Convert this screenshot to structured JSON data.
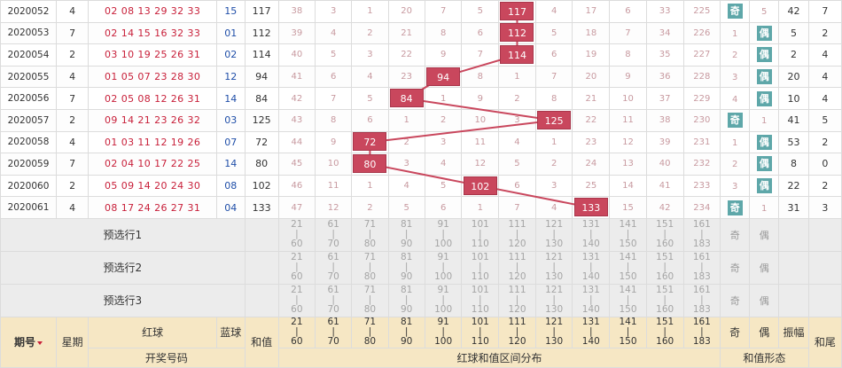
{
  "rows": [
    {
      "period": "2020052",
      "week": "4",
      "reds": "02 08 13 29 32 33",
      "blue": "15",
      "sum": "117",
      "bucket": 6,
      "miss": [
        "38",
        "3",
        "1",
        "20",
        "7",
        "5",
        "",
        "4",
        "17",
        "6",
        "33",
        "225"
      ],
      "oe": "奇",
      "oe_col": 0,
      "oe_miss": "5",
      "amp": "42",
      "tail": "7"
    },
    {
      "period": "2020053",
      "week": "7",
      "reds": "02 14 15 16 32 33",
      "blue": "01",
      "sum": "112",
      "bucket": 6,
      "miss": [
        "39",
        "4",
        "2",
        "21",
        "8",
        "6",
        "",
        "5",
        "18",
        "7",
        "34",
        "226"
      ],
      "oe": "偶",
      "oe_col": 1,
      "oe_miss": "1",
      "amp": "5",
      "tail": "2"
    },
    {
      "period": "2020054",
      "week": "2",
      "reds": "03 10 19 25 26 31",
      "blue": "02",
      "sum": "114",
      "bucket": 6,
      "miss": [
        "40",
        "5",
        "3",
        "22",
        "9",
        "7",
        "",
        "6",
        "19",
        "8",
        "35",
        "227"
      ],
      "oe": "偶",
      "oe_col": 1,
      "oe_miss": "2",
      "amp": "2",
      "tail": "4"
    },
    {
      "period": "2020055",
      "week": "4",
      "reds": "01 05 07 23 28 30",
      "blue": "12",
      "sum": "94",
      "bucket": 4,
      "miss": [
        "41",
        "6",
        "4",
        "23",
        "",
        "8",
        "1",
        "7",
        "20",
        "9",
        "36",
        "228"
      ],
      "oe": "偶",
      "oe_col": 1,
      "oe_miss": "3",
      "amp": "20",
      "tail": "4"
    },
    {
      "period": "2020056",
      "week": "7",
      "reds": "02 05 08 12 26 31",
      "blue": "14",
      "sum": "84",
      "bucket": 3,
      "miss": [
        "42",
        "7",
        "5",
        "",
        "1",
        "9",
        "2",
        "8",
        "21",
        "10",
        "37",
        "229"
      ],
      "oe": "偶",
      "oe_col": 1,
      "oe_miss": "4",
      "amp": "10",
      "tail": "4"
    },
    {
      "period": "2020057",
      "week": "2",
      "reds": "09 14 21 23 26 32",
      "blue": "03",
      "sum": "125",
      "bucket": 7,
      "miss": [
        "43",
        "8",
        "6",
        "1",
        "2",
        "10",
        "3",
        "",
        "22",
        "11",
        "38",
        "230"
      ],
      "oe": "奇",
      "oe_col": 0,
      "oe_miss": "1",
      "amp": "41",
      "tail": "5"
    },
    {
      "period": "2020058",
      "week": "4",
      "reds": "01 03 11 12 19 26",
      "blue": "07",
      "sum": "72",
      "bucket": 2,
      "miss": [
        "44",
        "9",
        "",
        "2",
        "3",
        "11",
        "4",
        "1",
        "23",
        "12",
        "39",
        "231"
      ],
      "oe": "偶",
      "oe_col": 1,
      "oe_miss": "1",
      "amp": "53",
      "tail": "2"
    },
    {
      "period": "2020059",
      "week": "7",
      "reds": "02 04 10 17 22 25",
      "blue": "14",
      "sum": "80",
      "bucket": 2,
      "miss": [
        "45",
        "10",
        "",
        "3",
        "4",
        "12",
        "5",
        "2",
        "24",
        "13",
        "40",
        "232"
      ],
      "oe": "偶",
      "oe_col": 1,
      "oe_miss": "2",
      "amp": "8",
      "tail": "0"
    },
    {
      "period": "2020060",
      "week": "2",
      "reds": "05 09 14 20 24 30",
      "blue": "08",
      "sum": "102",
      "bucket": 5,
      "miss": [
        "46",
        "11",
        "1",
        "4",
        "5",
        "",
        "6",
        "3",
        "25",
        "14",
        "41",
        "233"
      ],
      "oe": "偶",
      "oe_col": 1,
      "oe_miss": "3",
      "amp": "22",
      "tail": "2"
    },
    {
      "period": "2020061",
      "week": "4",
      "reds": "08 17 24 26 27 31",
      "blue": "04",
      "sum": "133",
      "bucket": 8,
      "miss": [
        "47",
        "12",
        "2",
        "5",
        "6",
        "1",
        "7",
        "4",
        "",
        "15",
        "42",
        "234"
      ],
      "oe": "奇",
      "oe_col": 0,
      "oe_miss": "1",
      "amp": "31",
      "tail": "3"
    }
  ],
  "ranges": [
    {
      "lo": "21",
      "hi": "60"
    },
    {
      "lo": "61",
      "hi": "70"
    },
    {
      "lo": "71",
      "hi": "80"
    },
    {
      "lo": "81",
      "hi": "90"
    },
    {
      "lo": "91",
      "hi": "100"
    },
    {
      "lo": "101",
      "hi": "110"
    },
    {
      "lo": "111",
      "hi": "120"
    },
    {
      "lo": "121",
      "hi": "130"
    },
    {
      "lo": "131",
      "hi": "140"
    },
    {
      "lo": "141",
      "hi": "150"
    },
    {
      "lo": "151",
      "hi": "160"
    },
    {
      "lo": "161",
      "hi": "183"
    }
  ],
  "preselect": [
    "预选行1",
    "预选行2",
    "预选行3"
  ],
  "oe_labels": {
    "odd": "奇",
    "even": "偶"
  },
  "header": {
    "period": "期号",
    "week": "星期",
    "red": "红球",
    "blue": "蓝球",
    "sum": "和值",
    "odd": "奇",
    "even": "偶",
    "amp": "振幅",
    "tail": "和尾",
    "draw": "开奖号码",
    "dist": "红球和值区间分布",
    "shape": "和值形态"
  },
  "colors": {
    "marker": "#c9475d",
    "line": "#c9475d",
    "oe_badge": "#5ea7a9",
    "header_bg": "#f6e7c4",
    "pre_bg": "#ececec"
  }
}
